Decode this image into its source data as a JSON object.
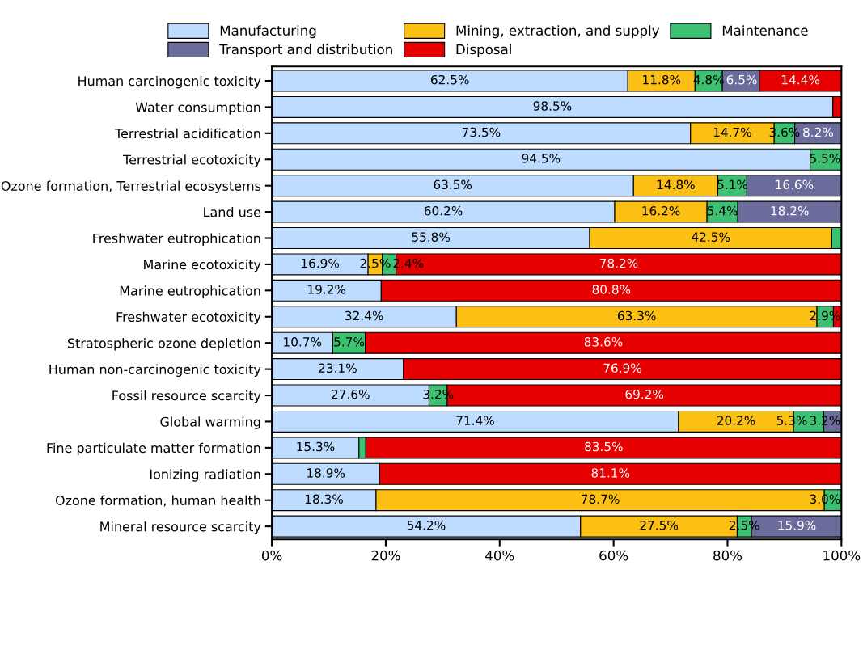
{
  "chart_data": {
    "type": "bar",
    "orientation": "horizontal",
    "stacked": true,
    "legend": "top",
    "grid": false,
    "categories": [
      "Human carcinogenic toxicity",
      "Water consumption",
      "Terrestrial acidification",
      "Terrestrial ecotoxicity",
      "Ozone formation, Terrestrial ecosystems",
      "Land use",
      "Freshwater eutrophication",
      "Marine ecotoxicity",
      "Marine eutrophication",
      "Freshwater ecotoxicity",
      "Stratospheric ozone depletion",
      "Human non-carcinogenic toxicity",
      "Fossil resource scarcity",
      "Global warming",
      "Fine particulate matter formation",
      "Ionizing radiation",
      "Ozone formation, human health",
      "Mineral resource scarcity"
    ],
    "xlim": [
      0,
      100
    ],
    "xticks": [
      {
        "value": 0,
        "label": "0%"
      },
      {
        "value": 20,
        "label": "20%"
      },
      {
        "value": 40,
        "label": "40%"
      },
      {
        "value": 60,
        "label": "60%"
      },
      {
        "value": 80,
        "label": "80%"
      },
      {
        "value": 100,
        "label": "100%"
      }
    ],
    "series": [
      {
        "name": "Manufacturing",
        "color": "#bddcff",
        "values": [
          62.5,
          98.5,
          73.5,
          94.5,
          63.5,
          60.2,
          55.8,
          16.9,
          19.2,
          32.4,
          10.7,
          23.1,
          27.6,
          71.4,
          15.3,
          18.9,
          18.3,
          54.2
        ],
        "value_labels": [
          "62.5%",
          "98.5%",
          "73.5%",
          "94.5%",
          "63.5%",
          "60.2%",
          "55.8%",
          "16.9%",
          "19.2%",
          "32.4%",
          "10.7%",
          "23.1%",
          "27.6%",
          "71.4%",
          "15.3%",
          "18.9%",
          "18.3%",
          "54.2%"
        ]
      },
      {
        "name": "Mining, extraction, and supply",
        "color": "#fcbf13",
        "values": [
          11.8,
          null,
          14.7,
          null,
          14.8,
          16.2,
          42.5,
          2.5,
          null,
          63.3,
          null,
          null,
          null,
          20.2,
          null,
          null,
          78.7,
          27.5
        ],
        "value_labels": [
          "11.8%",
          null,
          "14.7%",
          null,
          "14.8%",
          "16.2%",
          "42.5%",
          "2.5%",
          null,
          "63.3%",
          null,
          null,
          null,
          "20.2%",
          null,
          null,
          "78.7%",
          "27.5%"
        ]
      },
      {
        "name": "Maintenance",
        "color": "#3cc172",
        "values": [
          4.8,
          null,
          3.6,
          5.5,
          5.1,
          5.4,
          1.7,
          2.4,
          null,
          2.9,
          5.7,
          null,
          3.2,
          5.3,
          1.2,
          null,
          3.0,
          2.5
        ],
        "value_labels": [
          "4.8%",
          null,
          "3.6%",
          "5.5%",
          "5.1%",
          "5.4%",
          null,
          "2.4%",
          null,
          "2.9%",
          "5.7%",
          null,
          "3.2%",
          "5.3%",
          null,
          null,
          "3.0%",
          "2.5%"
        ]
      },
      {
        "name": "Transport and distribution",
        "color": "#6b6b9c",
        "values": [
          6.5,
          null,
          8.2,
          null,
          16.6,
          18.2,
          null,
          null,
          null,
          null,
          null,
          null,
          null,
          3.2,
          null,
          null,
          null,
          15.9
        ],
        "value_labels": [
          "6.5%",
          null,
          "8.2%",
          null,
          "16.6%",
          "18.2%",
          null,
          null,
          null,
          null,
          null,
          null,
          null,
          "3.2%",
          null,
          null,
          null,
          "15.9%"
        ]
      },
      {
        "name": "Disposal",
        "color": "#e60000",
        "values": [
          14.4,
          1.5,
          null,
          null,
          null,
          null,
          null,
          78.2,
          80.8,
          1.4,
          83.6,
          76.9,
          69.2,
          null,
          83.5,
          81.1,
          null,
          null
        ],
        "value_labels": [
          "14.4%",
          null,
          null,
          null,
          null,
          null,
          null,
          "78.2%",
          "80.8%",
          null,
          "83.6%",
          "76.9%",
          "69.2%",
          null,
          "83.5%",
          "81.1%",
          null,
          null
        ]
      }
    ]
  }
}
